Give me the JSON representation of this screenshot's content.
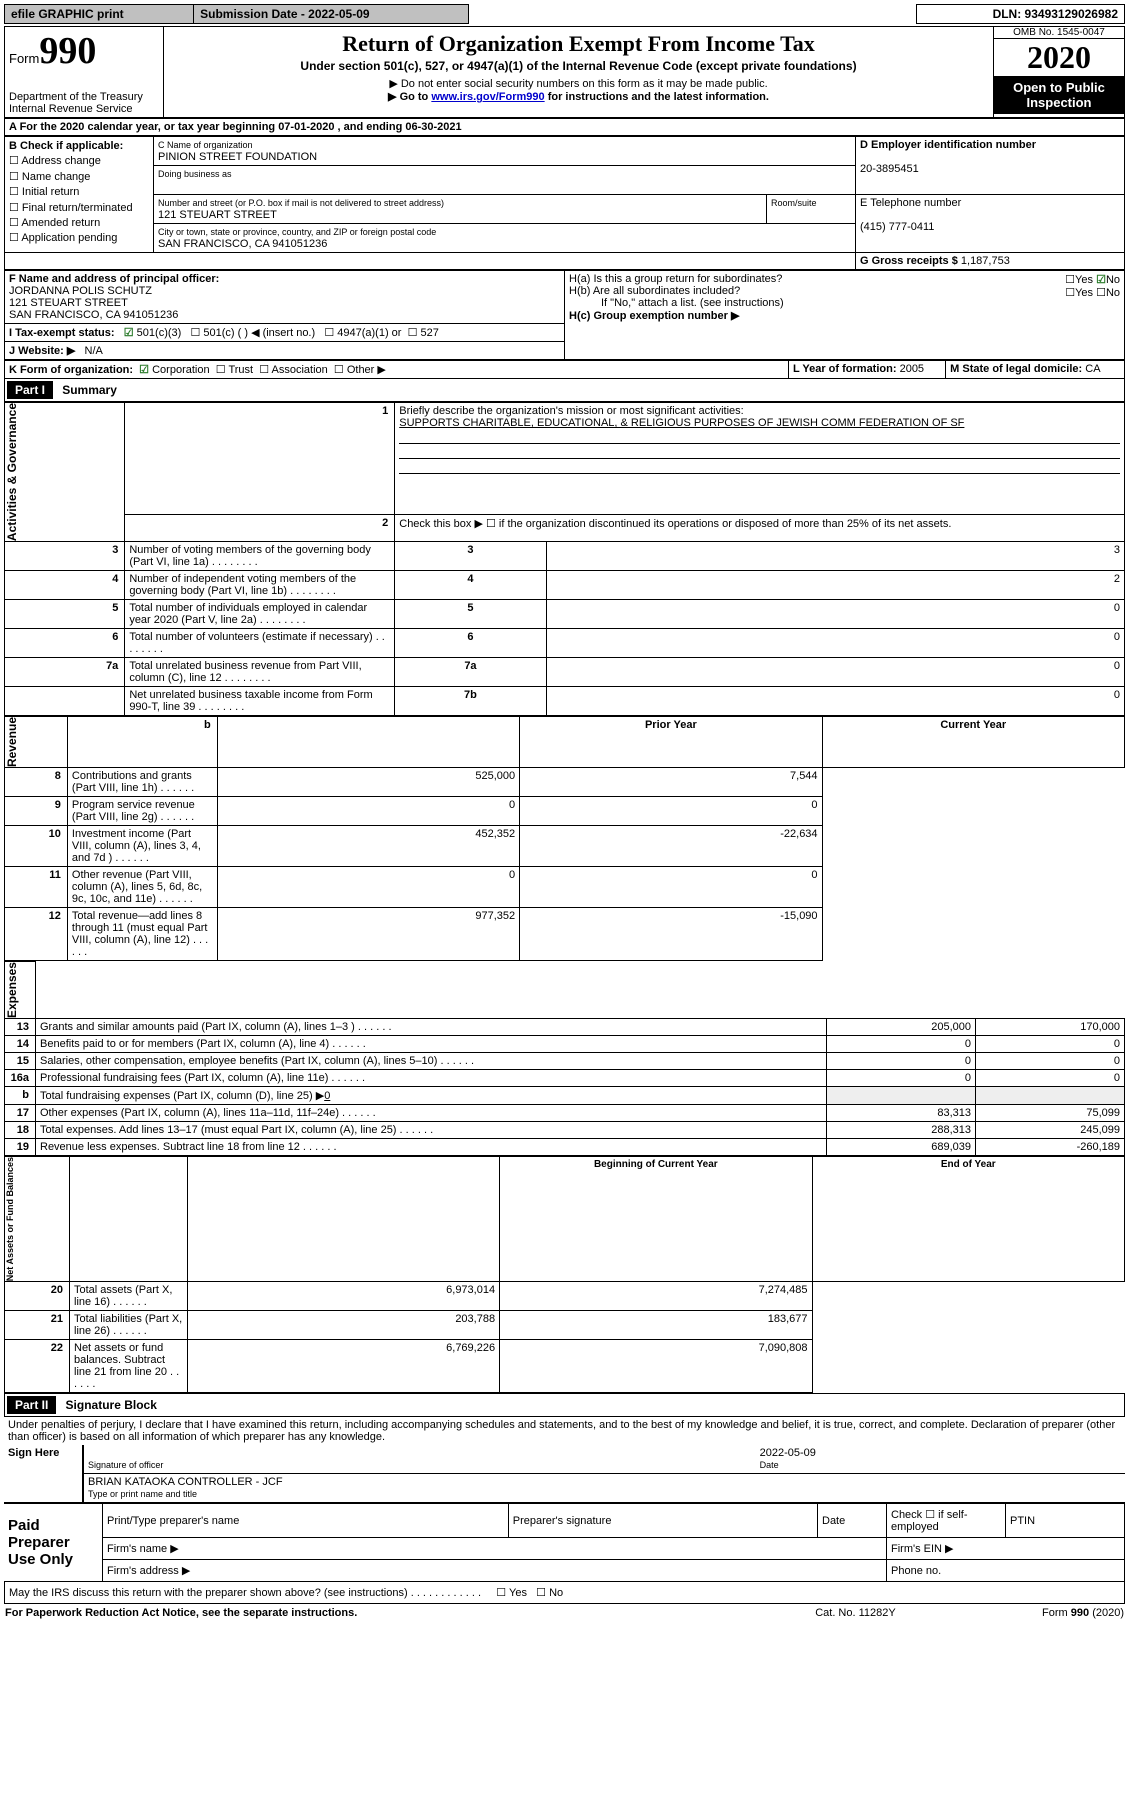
{
  "topbar": {
    "efile": "efile GRAPHIC print",
    "submission_label": "Submission Date - 2022-05-09",
    "dln": "DLN: 93493129026982"
  },
  "header": {
    "form_label": "Form",
    "form_num": "990",
    "dept": "Department of the Treasury\nInternal Revenue Service",
    "title": "Return of Organization Exempt From Income Tax",
    "subtitle": "Under section 501(c), 527, or 4947(a)(1) of the Internal Revenue Code (except private foundations)",
    "note1": "▶ Do not enter social security numbers on this form as it may be made public.",
    "note2_pre": "▶ Go to ",
    "note2_link": "www.irs.gov/Form990",
    "note2_post": " for instructions and the latest information.",
    "omb": "OMB No. 1545-0047",
    "year": "2020",
    "pub": "Open to Public Inspection"
  },
  "period": {
    "text": "A For the 2020 calendar year, or tax year beginning 07-01-2020    , and ending 06-30-2021"
  },
  "blockB": {
    "title": "B Check if applicable:",
    "addr": "Address change",
    "name": "Name change",
    "initial": "Initial return",
    "final": "Final return/terminated",
    "amended": "Amended return",
    "app": "Application pending"
  },
  "blockC": {
    "name_label": "C Name of organization",
    "org_name": "PINION STREET FOUNDATION",
    "dba_label": "Doing business as",
    "street_label": "Number and street (or P.O. box if mail is not delivered to street address)",
    "room_label": "Room/suite",
    "street": "121 STEUART STREET",
    "city_label": "City or town, state or province, country, and ZIP or foreign postal code",
    "city": "SAN FRANCISCO, CA  941051236"
  },
  "blockD": {
    "label": "D Employer identification number",
    "value": "20-3895451"
  },
  "blockE": {
    "label": "E Telephone number",
    "value": "(415) 777-0411"
  },
  "blockG": {
    "label": "G Gross receipts $",
    "value": "1,187,753"
  },
  "blockF": {
    "label": "F Name and address of principal officer:",
    "name": "JORDANNA POLIS SCHUTZ",
    "street": "121 STEUART STREET",
    "city": "SAN FRANCISCO, CA  941051236"
  },
  "blockH": {
    "a": "H(a)  Is this a group return for subordinates?",
    "b": "H(b)  Are all subordinates included?",
    "note": "If \"No,\" attach a list. (see instructions)",
    "c": "H(c)  Group exemption number ▶",
    "yes": "Yes",
    "no": "No"
  },
  "blockI": {
    "label": "I   Tax-exempt status:",
    "c3": "501(c)(3)",
    "c": "501(c) (   ) ◀ (insert no.)",
    "a1": "4947(a)(1) or",
    "s527": "527"
  },
  "blockJ": {
    "label": "J   Website: ▶",
    "value": "N/A"
  },
  "blockK": {
    "label": "K Form of organization:",
    "corp": "Corporation",
    "trust": "Trust",
    "assoc": "Association",
    "other": "Other ▶"
  },
  "blockL": {
    "label": "L Year of formation:",
    "value": "2005"
  },
  "blockM": {
    "label": "M State of legal domicile:",
    "value": "CA"
  },
  "part1": {
    "header": "Part I",
    "title": "Summary",
    "line1_label": "Briefly describe the organization's mission or most significant activities:",
    "line1_text": "SUPPORTS CHARITABLE, EDUCATIONAL, & RELIGIOUS PURPOSES OF JEWISH COMM FEDERATION OF SF",
    "line2": "Check this box ▶ ☐  if the organization discontinued its operations or disposed of more than 25% of its net assets.",
    "governance_label": "Activities & Governance",
    "revenue_label": "Revenue",
    "expenses_label": "Expenses",
    "netassets_label": "Net Assets or Fund Balances",
    "prior_year": "Prior Year",
    "current_year": "Current Year",
    "beg_year": "Beginning of Current Year",
    "end_year": "End of Year",
    "rows_gov": [
      {
        "n": "3",
        "t": "Number of voting members of the governing body (Part VI, line 1a)",
        "box": "3",
        "v": "3"
      },
      {
        "n": "4",
        "t": "Number of independent voting members of the governing body (Part VI, line 1b)",
        "box": "4",
        "v": "2"
      },
      {
        "n": "5",
        "t": "Total number of individuals employed in calendar year 2020 (Part V, line 2a)",
        "box": "5",
        "v": "0"
      },
      {
        "n": "6",
        "t": "Total number of volunteers (estimate if necessary)",
        "box": "6",
        "v": "0"
      },
      {
        "n": "7a",
        "t": "Total unrelated business revenue from Part VIII, column (C), line 12",
        "box": "7a",
        "v": "0"
      },
      {
        "n": "",
        "t": "Net unrelated business taxable income from Form 990-T, line 39",
        "box": "7b",
        "v": "0"
      }
    ],
    "rows_rev": [
      {
        "n": "8",
        "t": "Contributions and grants (Part VIII, line 1h)",
        "p": "525,000",
        "c": "7,544"
      },
      {
        "n": "9",
        "t": "Program service revenue (Part VIII, line 2g)",
        "p": "0",
        "c": "0"
      },
      {
        "n": "10",
        "t": "Investment income (Part VIII, column (A), lines 3, 4, and 7d )",
        "p": "452,352",
        "c": "-22,634"
      },
      {
        "n": "11",
        "t": "Other revenue (Part VIII, column (A), lines 5, 6d, 8c, 9c, 10c, and 11e)",
        "p": "0",
        "c": "0"
      },
      {
        "n": "12",
        "t": "Total revenue—add lines 8 through 11 (must equal Part VIII, column (A), line 12)",
        "p": "977,352",
        "c": "-15,090"
      }
    ],
    "rows_exp": [
      {
        "n": "13",
        "t": "Grants and similar amounts paid (Part IX, column (A), lines 1–3 )",
        "p": "205,000",
        "c": "170,000"
      },
      {
        "n": "14",
        "t": "Benefits paid to or for members (Part IX, column (A), line 4)",
        "p": "0",
        "c": "0"
      },
      {
        "n": "15",
        "t": "Salaries, other compensation, employee benefits (Part IX, column (A), lines 5–10)",
        "p": "0",
        "c": "0"
      },
      {
        "n": "16a",
        "t": "Professional fundraising fees (Part IX, column (A), line 11e)",
        "p": "0",
        "c": "0"
      }
    ],
    "row16b": {
      "n": "b",
      "t": "Total fundraising expenses (Part IX, column (D), line 25) ▶",
      "v": "0"
    },
    "rows_exp2": [
      {
        "n": "17",
        "t": "Other expenses (Part IX, column (A), lines 11a–11d, 11f–24e)",
        "p": "83,313",
        "c": "75,099"
      },
      {
        "n": "18",
        "t": "Total expenses. Add lines 13–17 (must equal Part IX, column (A), line 25)",
        "p": "288,313",
        "c": "245,099"
      },
      {
        "n": "19",
        "t": "Revenue less expenses. Subtract line 18 from line 12",
        "p": "689,039",
        "c": "-260,189"
      }
    ],
    "rows_net": [
      {
        "n": "20",
        "t": "Total assets (Part X, line 16)",
        "p": "6,973,014",
        "c": "7,274,485"
      },
      {
        "n": "21",
        "t": "Total liabilities (Part X, line 26)",
        "p": "203,788",
        "c": "183,677"
      },
      {
        "n": "22",
        "t": "Net assets or fund balances. Subtract line 21 from line 20",
        "p": "6,769,226",
        "c": "7,090,808"
      }
    ]
  },
  "part2": {
    "header": "Part II",
    "title": "Signature Block",
    "perjury": "Under penalties of perjury, I declare that I have examined this return, including accompanying schedules and statements, and to the best of my knowledge and belief, it is true, correct, and complete. Declaration of preparer (other than officer) is based on all information of which preparer has any knowledge.",
    "sign_here": "Sign Here",
    "sig_officer": "Signature of officer",
    "sig_date": "2022-05-09",
    "date_label": "Date",
    "officer_name": "BRIAN KATAOKA  CONTROLLER - JCF",
    "type_label": "Type or print name and title",
    "paid_prep": "Paid Preparer Use Only",
    "prep_name": "Print/Type preparer's name",
    "prep_sig": "Preparer's signature",
    "prep_date": "Date",
    "check_self": "Check ☐  if self-employed",
    "ptin": "PTIN",
    "firm_name": "Firm's name    ▶",
    "firm_ein": "Firm's EIN ▶",
    "firm_addr": "Firm's address ▶",
    "phone": "Phone no.",
    "discuss": "May the IRS discuss this return with the preparer shown above? (see instructions)",
    "yes": "Yes",
    "no": "No"
  },
  "footer": {
    "paperwork": "For Paperwork Reduction Act Notice, see the separate instructions.",
    "cat": "Cat. No. 11282Y",
    "form": "Form 990 (2020)"
  }
}
